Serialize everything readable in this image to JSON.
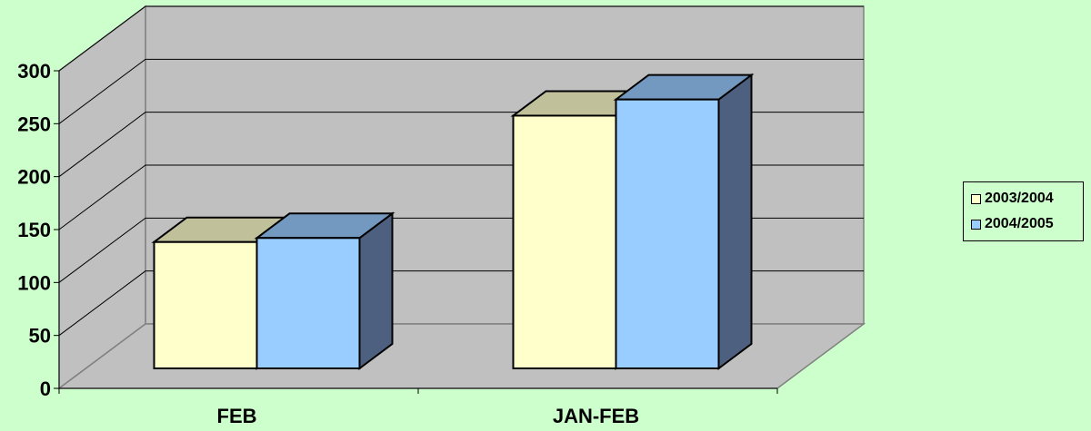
{
  "chart_data": {
    "type": "bar",
    "categories": [
      "FEB",
      "JAN-FEB"
    ],
    "series": [
      {
        "name": "2003/2004",
        "values": [
          125,
          250
        ],
        "color": "#ffffcc",
        "top_color": "#c0c09a",
        "side_color": "#4d6080"
      },
      {
        "name": "2004/2005",
        "values": [
          129,
          266
        ],
        "color": "#99ccff",
        "top_color": "#7399c0",
        "side_color": "#4d6080"
      }
    ],
    "ylim": [
      0,
      300
    ],
    "yticks": [
      0,
      50,
      100,
      150,
      200,
      250,
      300
    ],
    "grid": true,
    "legend_position": "right",
    "wall_color": "#c0c0c0",
    "title": "",
    "xlabel": "",
    "ylabel": ""
  }
}
